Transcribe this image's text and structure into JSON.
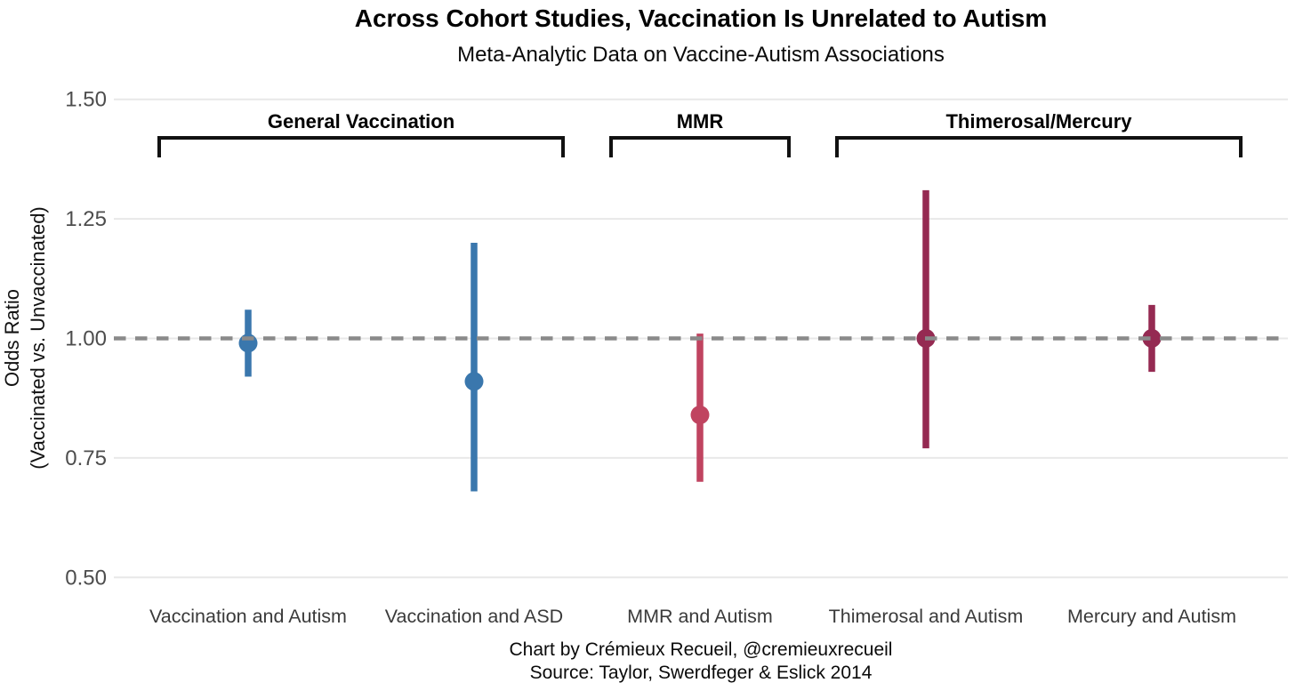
{
  "title": "Across Cohort Studies, Vaccination Is Unrelated to Autism",
  "subtitle": "Meta-Analytic Data on Vaccine-Autism Associations",
  "caption": [
    "Chart by Crémieux Recueil, @cremieuxrecueil",
    "Source: Taylor, Swerdfeger & Eslick 2014"
  ],
  "chart_data": {
    "type": "scatter",
    "style": "forest-plot-errorbars",
    "title": "Across Cohort Studies, Vaccination Is Unrelated to Autism",
    "subtitle": "Meta-Analytic Data on Vaccine-Autism Associations",
    "xlabel": "",
    "ylabel": "Odds Ratio (Vaccinated vs. Unvaccinated)",
    "ylabel_lines": [
      "Odds Ratio",
      "(Vaccinated vs. Unvaccinated)"
    ],
    "ylim": [
      0.5,
      1.5
    ],
    "yticks": [
      "0.50",
      "0.75",
      "1.00",
      "1.25",
      "1.50"
    ],
    "grid": "horizontal-light",
    "legend": "none",
    "reference_line": {
      "value": 1.0,
      "style": "dashed",
      "color": "#8a8a8a"
    },
    "categories": [
      "Vaccination and Autism",
      "Vaccination and ASD",
      "MMR and Autism",
      "Thimerosal and Autism",
      "Mercury and Autism"
    ],
    "points": [
      {
        "label": "Vaccination and Autism",
        "group": "General Vaccination",
        "odds_ratio": 0.99,
        "ci_low": 0.92,
        "ci_high": 1.06,
        "color": "#3a77ad"
      },
      {
        "label": "Vaccination and ASD",
        "group": "General Vaccination",
        "odds_ratio": 0.91,
        "ci_low": 0.68,
        "ci_high": 1.2,
        "color": "#3a77ad"
      },
      {
        "label": "MMR and Autism",
        "group": "MMR",
        "odds_ratio": 0.84,
        "ci_low": 0.7,
        "ci_high": 1.01,
        "color": "#c04460"
      },
      {
        "label": "Thimerosal and Autism",
        "group": "Thimerosal/Mercury",
        "odds_ratio": 1.0,
        "ci_low": 0.77,
        "ci_high": 1.31,
        "color": "#952a52"
      },
      {
        "label": "Mercury and Autism",
        "group": "Thimerosal/Mercury",
        "odds_ratio": 1.0,
        "ci_low": 0.93,
        "ci_high": 1.07,
        "color": "#952a52"
      }
    ],
    "groups": [
      {
        "label": "General Vaccination",
        "first_index": 0,
        "last_index": 1
      },
      {
        "label": "MMR",
        "first_index": 2,
        "last_index": 2
      },
      {
        "label": "Thimerosal/Mercury",
        "first_index": 3,
        "last_index": 4
      }
    ],
    "colors": {
      "general_vaccination": "#3a77ad",
      "mmr": "#c04460",
      "thimerosal_mercury": "#952a52",
      "gridline": "#e8e8e8",
      "reference": "#8a8a8a",
      "bracket": "#111111"
    }
  }
}
